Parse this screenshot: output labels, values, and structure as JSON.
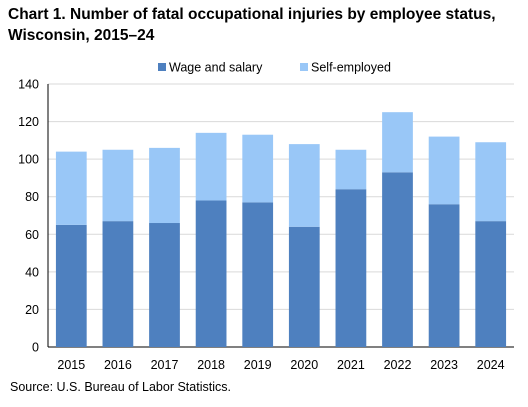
{
  "title": "Chart 1. Number of fatal occupational injuries by employee status, Wisconsin, 2015–24",
  "source": "Source: U.S. Bureau of Labor Statistics.",
  "chart_data": {
    "type": "bar",
    "stacked": true,
    "title": "Chart 1. Number of fatal occupational injuries by employee status, Wisconsin, 2015–24",
    "xlabel": "",
    "ylabel": "",
    "ylim": [
      0,
      140
    ],
    "yticks": [
      0,
      20,
      40,
      60,
      80,
      100,
      120,
      140
    ],
    "grid": true,
    "legend_position": "top-center",
    "categories": [
      "2015",
      "2016",
      "2017",
      "2018",
      "2019",
      "2020",
      "2021",
      "2022",
      "2023",
      "2024"
    ],
    "series": [
      {
        "name": "Wage and salary",
        "color": "#4e80bf",
        "values": [
          65,
          67,
          66,
          78,
          77,
          64,
          84,
          93,
          76,
          67
        ]
      },
      {
        "name": "Self-employed",
        "color": "#99c7f7",
        "values": [
          39,
          38,
          40,
          36,
          36,
          44,
          21,
          32,
          36,
          42
        ]
      }
    ]
  }
}
